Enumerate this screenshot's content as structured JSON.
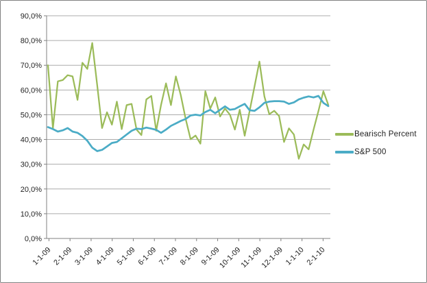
{
  "window": {
    "background": "#FFFFFF",
    "border_color": "#808080"
  },
  "legend": {
    "position": "right",
    "items": [
      {
        "label": "Bearisch Percent",
        "color": "#9BBB59"
      },
      {
        "label": "S&P 500",
        "color": "#4BACC6"
      }
    ]
  },
  "chart_data": {
    "type": "line",
    "title": "",
    "xlabel": "",
    "ylabel": "",
    "grid": true,
    "ylim": [
      0,
      90
    ],
    "y_step": 10,
    "y_tick_labels_top_to_bottom": [
      "90,0%",
      "80,0%",
      "70,0%",
      "60,0%",
      "50,0%",
      "40,0%",
      "30,0%",
      "20,0%",
      "10,0%",
      "0,0%"
    ],
    "x_tick_labels": [
      "1-1-09",
      "2-1-09",
      "3-1-09",
      "4-1-09",
      "5-1-09",
      "6-1-09",
      "7-1-09",
      "8-1-09",
      "9-1-09",
      "10-1-09",
      "11-1-09",
      "12-1-09",
      "1-1-10",
      "2-1-10"
    ],
    "x_unit": "weekly points from 1-1-09 to 2-1-10",
    "axis_color": "#808080",
    "gridline_color": "#ABABAB",
    "tick_label_color": "#1f1f1f",
    "series": [
      {
        "name": "Bearisch Percent",
        "color": "#9BBB59",
        "stroke_width": 2.25,
        "values": [
          70,
          44.5,
          63.5,
          64,
          66,
          65.5,
          56,
          71,
          68.5,
          79,
          62,
          44.6,
          51,
          46,
          55.3,
          44.2,
          53.9,
          54.4,
          44,
          41.8,
          56.2,
          57.6,
          43.5,
          54,
          62.7,
          53.9,
          65.5,
          58,
          48.3,
          40.1,
          41.6,
          38.3,
          59.5,
          52.5,
          57,
          49.3,
          52.5,
          50,
          44,
          52,
          41.5,
          51.5,
          61.5,
          71.5,
          57.5,
          50.2,
          51.6,
          49.5,
          39,
          44.5,
          42,
          32.2,
          38,
          36,
          44,
          51.5,
          59.5,
          54
        ]
      },
      {
        "name": "S&P 500",
        "color": "#4BACC6",
        "stroke_width": 2.75,
        "values": [
          45,
          44.2,
          43.2,
          43.7,
          44.6,
          43.2,
          42.7,
          41.4,
          39.5,
          36.7,
          35.3,
          35.8,
          37.2,
          38.6,
          39,
          40.5,
          42,
          43.5,
          44.4,
          44.2,
          44.8,
          44.4,
          43.9,
          42.7,
          44,
          45.5,
          46.5,
          47.5,
          48.3,
          49.7,
          50,
          49.7,
          51.1,
          52,
          50.6,
          52,
          53.4,
          52,
          52.3,
          53.4,
          54.4,
          51.8,
          51.6,
          53,
          54.8,
          55.3,
          55.5,
          55.5,
          55.3,
          54.4,
          55,
          56.2,
          56.9,
          57.4,
          57,
          57.6,
          54.8,
          53.5
        ]
      }
    ]
  }
}
